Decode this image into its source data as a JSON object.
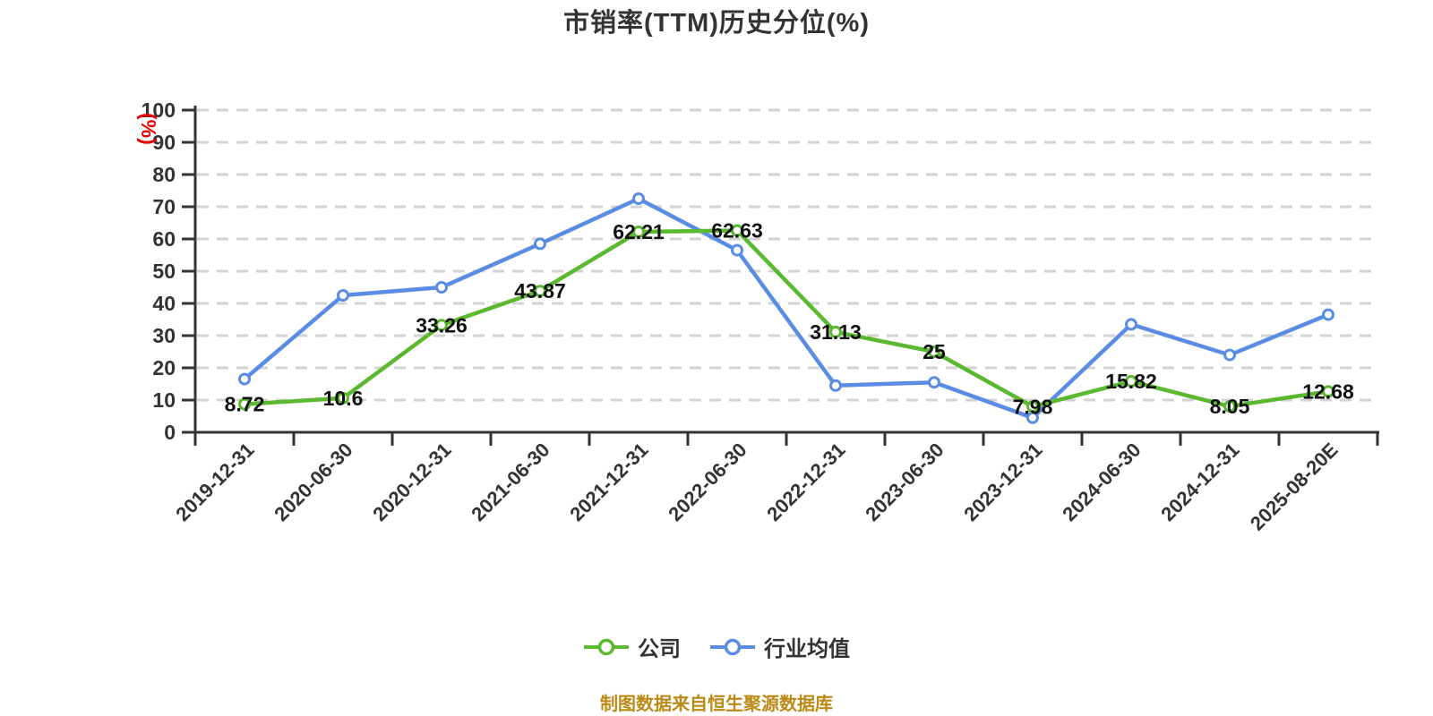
{
  "source_note": "制图数据来自恒生聚源数据库",
  "chart_data": {
    "type": "line",
    "title": "市销率(TTM)历史分位(%)",
    "y_axis_unit": "(%)",
    "xlabel": "",
    "ylabel": "(%)",
    "ylim": [
      0,
      100
    ],
    "y_ticks": [
      0,
      10,
      20,
      30,
      40,
      50,
      60,
      70,
      80,
      90,
      100
    ],
    "grid": "horizontal-dashed-lines",
    "legend_position": "bottom",
    "categories": [
      "2019-12-31",
      "2020-06-30",
      "2020-12-31",
      "2021-06-30",
      "2021-12-31",
      "2022-06-30",
      "2022-12-31",
      "2023-06-30",
      "2023-12-31",
      "2024-06-30",
      "2024-12-31",
      "2025-08-20E"
    ],
    "series": [
      {
        "name": "公司",
        "color": "#5ab92e",
        "values": [
          8.72,
          10.6,
          33.26,
          43.87,
          62.21,
          62.63,
          31.13,
          25,
          7.98,
          15.82,
          8.05,
          12.68
        ],
        "point_labels": [
          "8.72",
          "10.6",
          "33.26",
          "43.87",
          "62.21",
          "62.63",
          "31.13",
          "25",
          "7.98",
          "15.82",
          "8.05",
          "12.68"
        ],
        "show_point_labels": true
      },
      {
        "name": "行业均值",
        "color": "#5b8ce4",
        "values": [
          16.5,
          42.5,
          45,
          58.5,
          72.5,
          56.5,
          14.5,
          15.5,
          4.5,
          33.5,
          24,
          36.5
        ],
        "show_point_labels": false
      }
    ],
    "colors": {
      "background": "#ffffff",
      "title": "#333333",
      "axis": "#333333",
      "gridline": "#d3d3d3",
      "axis_label": "#333333",
      "value_label": "#111111",
      "y_unit": "#e60000",
      "company_line": "#5ab92e",
      "industry_line": "#5b8ce4",
      "marker_fill": "#ffffff",
      "footer": "#bb8a16"
    }
  }
}
